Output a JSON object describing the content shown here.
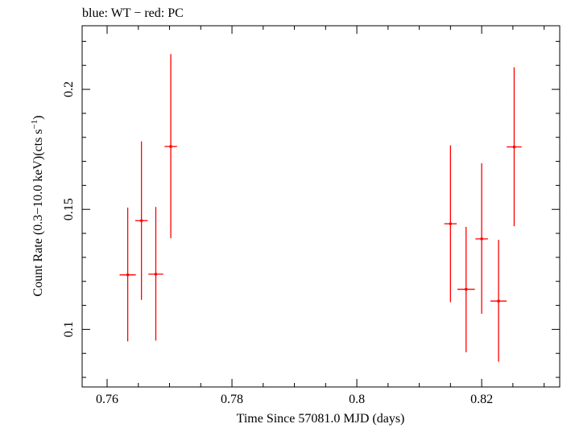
{
  "chart_data": {
    "type": "scatter",
    "title": "blue: WT − red: PC",
    "xlabel": "Time Since 57081.0 MJD (days)",
    "ylabel_main": "Count Rate (0.3−10.0 keV)(cts s",
    "ylabel_sup": "−1",
    "ylabel_end": ")",
    "xlim": [
      0.756,
      0.8325
    ],
    "ylim": [
      0.076,
      0.2265
    ],
    "x_ticks": [
      {
        "value": 0.76,
        "label": "0.76"
      },
      {
        "value": 0.78,
        "label": "0.78"
      },
      {
        "value": 0.8,
        "label": "0.8"
      },
      {
        "value": 0.82,
        "label": "0.82"
      }
    ],
    "y_ticks": [
      {
        "value": 0.1,
        "label": "0.1"
      },
      {
        "value": 0.15,
        "label": "0.15"
      },
      {
        "value": 0.2,
        "label": "0.2"
      }
    ],
    "grid": false,
    "series": [
      {
        "name": "PC",
        "color": "#ff0000",
        "points": [
          {
            "x": 0.7633,
            "y": 0.1227,
            "xerr": 0.0013,
            "yerr_low": 0.0277,
            "yerr_high": 0.028
          },
          {
            "x": 0.7655,
            "y": 0.1453,
            "xerr": 0.001,
            "yerr_low": 0.033,
            "yerr_high": 0.033
          },
          {
            "x": 0.7678,
            "y": 0.123,
            "xerr": 0.0012,
            "yerr_low": 0.0277,
            "yerr_high": 0.028
          },
          {
            "x": 0.7702,
            "y": 0.1762,
            "xerr": 0.001,
            "yerr_low": 0.0382,
            "yerr_high": 0.0385
          },
          {
            "x": 0.815,
            "y": 0.144,
            "xerr": 0.001,
            "yerr_low": 0.0327,
            "yerr_high": 0.0327
          },
          {
            "x": 0.8175,
            "y": 0.1167,
            "xerr": 0.0014,
            "yerr_low": 0.0262,
            "yerr_high": 0.026
          },
          {
            "x": 0.82,
            "y": 0.1377,
            "xerr": 0.001,
            "yerr_low": 0.0312,
            "yerr_high": 0.0315
          },
          {
            "x": 0.8227,
            "y": 0.1118,
            "xerr": 0.0013,
            "yerr_low": 0.0253,
            "yerr_high": 0.0255
          },
          {
            "x": 0.8252,
            "y": 0.176,
            "xerr": 0.0012,
            "yerr_low": 0.033,
            "yerr_high": 0.0332
          }
        ]
      }
    ]
  }
}
